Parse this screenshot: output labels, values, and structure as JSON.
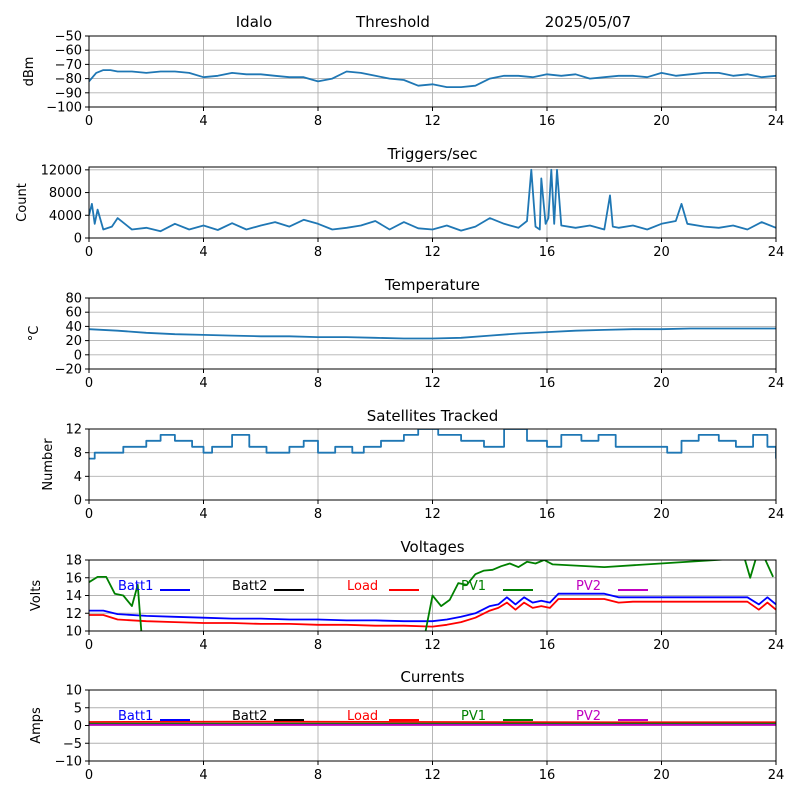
{
  "header": {
    "site": "Idalo",
    "label": "Threshold",
    "date": "2025/05/07"
  },
  "chart_data": [
    {
      "id": "noise",
      "type": "line",
      "title": "",
      "xlabel": "",
      "ylabel": "dBm",
      "xlim": [
        0,
        24
      ],
      "ylim": [
        -100,
        -50
      ],
      "xticks": [
        0,
        4,
        8,
        12,
        16,
        20,
        24
      ],
      "yticks": [
        -100,
        -90,
        -80,
        -70,
        -60,
        -50
      ],
      "grid": true,
      "series": [
        {
          "color": "#1f77b4",
          "x": [
            0,
            0.25,
            0.5,
            0.75,
            1,
            1.5,
            2,
            2.5,
            3,
            3.5,
            4,
            4.5,
            5,
            5.5,
            6,
            6.5,
            7,
            7.5,
            8,
            8.5,
            9,
            9.5,
            10,
            10.5,
            11,
            11.5,
            12,
            12.5,
            13,
            13.5,
            14,
            14.5,
            15,
            15.5,
            16,
            16.5,
            17,
            17.5,
            18,
            18.5,
            19,
            19.5,
            20,
            20.5,
            21,
            21.5,
            22,
            22.5,
            23,
            23.5,
            24
          ],
          "y": [
            -82,
            -76,
            -74,
            -74,
            -75,
            -75,
            -76,
            -75,
            -75,
            -76,
            -79,
            -78,
            -76,
            -77,
            -77,
            -78,
            -79,
            -79,
            -82,
            -80,
            -75,
            -76,
            -78,
            -80,
            -81,
            -85,
            -84,
            -86,
            -86,
            -85,
            -80,
            -78,
            -78,
            -79,
            -77,
            -78,
            -77,
            -80,
            -79,
            -78,
            -78,
            -79,
            -76,
            -78,
            -77,
            -76,
            -76,
            -78,
            -77,
            -79,
            -78
          ]
        }
      ]
    },
    {
      "id": "triggers",
      "type": "line",
      "title": "Triggers/sec",
      "xlabel": "",
      "ylabel": "Count",
      "xlim": [
        0,
        24
      ],
      "ylim": [
        0,
        12500
      ],
      "xticks": [
        0,
        4,
        8,
        12,
        16,
        20,
        24
      ],
      "yticks": [
        0,
        4000,
        8000,
        12000
      ],
      "grid": true,
      "series": [
        {
          "color": "#1f77b4",
          "x": [
            0,
            0.1,
            0.2,
            0.3,
            0.5,
            0.8,
            1,
            1.5,
            2,
            2.5,
            3,
            3.5,
            4,
            4.5,
            5,
            5.5,
            6,
            6.5,
            7,
            7.5,
            8,
            8.5,
            9,
            9.5,
            10,
            10.5,
            11,
            11.5,
            12,
            12.5,
            13,
            13.5,
            14,
            14.5,
            15,
            15.3,
            15.45,
            15.6,
            15.75,
            15.8,
            15.95,
            16.05,
            16.15,
            16.25,
            16.35,
            16.5,
            17,
            17.5,
            18,
            18.2,
            18.3,
            18.5,
            19,
            19.5,
            20,
            20.5,
            20.7,
            20.9,
            21.5,
            22,
            22.5,
            23,
            23.5,
            24
          ],
          "y": [
            4000,
            6000,
            2500,
            5000,
            1500,
            2000,
            3500,
            1500,
            1800,
            1200,
            2500,
            1500,
            2200,
            1400,
            2600,
            1500,
            2200,
            2800,
            2000,
            3200,
            2500,
            1500,
            1800,
            2200,
            3000,
            1500,
            2800,
            1700,
            1500,
            2200,
            1300,
            2000,
            3500,
            2500,
            1800,
            3000,
            12000,
            2000,
            1500,
            10500,
            2500,
            3500,
            12000,
            2500,
            12000,
            2200,
            1800,
            2200,
            1500,
            7500,
            2000,
            1800,
            2200,
            1500,
            2500,
            3000,
            6000,
            2500,
            2000,
            1800,
            2200,
            1500,
            2800,
            1800
          ]
        }
      ]
    },
    {
      "id": "temperature",
      "type": "line",
      "title": "Temperature",
      "xlabel": "",
      "ylabel": "°C",
      "xlim": [
        0,
        24
      ],
      "ylim": [
        -20,
        80
      ],
      "xticks": [
        0,
        4,
        8,
        12,
        16,
        20,
        24
      ],
      "yticks": [
        -20,
        0,
        20,
        40,
        60,
        80
      ],
      "grid": true,
      "series": [
        {
          "color": "#1f77b4",
          "x": [
            0,
            1,
            2,
            3,
            4,
            5,
            6,
            7,
            8,
            9,
            10,
            11,
            12,
            13,
            14,
            15,
            16,
            17,
            18,
            19,
            20,
            21,
            22,
            23,
            24
          ],
          "y": [
            36,
            34,
            31,
            29,
            28,
            27,
            26,
            26,
            25,
            25,
            24,
            23,
            23,
            24,
            27,
            30,
            32,
            34,
            35,
            36,
            36,
            37,
            37,
            37,
            37
          ]
        }
      ]
    },
    {
      "id": "satellites",
      "type": "line",
      "title": "Satellites Tracked",
      "xlabel": "",
      "ylabel": "Number",
      "xlim": [
        0,
        24
      ],
      "ylim": [
        0,
        12
      ],
      "xticks": [
        0,
        4,
        8,
        12,
        16,
        20,
        24
      ],
      "yticks": [
        0,
        4,
        8,
        12
      ],
      "grid": true,
      "step": true,
      "series": [
        {
          "color": "#1f77b4",
          "x": [
            0,
            0.2,
            0.4,
            1.2,
            2.0,
            2.5,
            3.0,
            3.6,
            4.0,
            4.3,
            5.0,
            5.6,
            6.2,
            7.0,
            7.5,
            8.0,
            8.6,
            9.2,
            9.6,
            10.2,
            11.0,
            11.5,
            12.2,
            13.0,
            13.8,
            14.5,
            15.3,
            16.0,
            16.5,
            17.2,
            17.8,
            18.4,
            19.0,
            19.6,
            20.2,
            20.7,
            21.3,
            22.0,
            22.6,
            23.2,
            23.7,
            24
          ],
          "y": [
            7,
            8,
            8,
            9,
            10,
            11,
            10,
            9,
            8,
            9,
            11,
            9,
            8,
            9,
            10,
            8,
            9,
            8,
            9,
            10,
            11,
            12,
            11,
            10,
            9,
            12,
            10,
            9,
            11,
            10,
            11,
            9,
            9,
            9,
            8,
            10,
            11,
            10,
            9,
            11,
            9,
            7
          ]
        }
      ]
    },
    {
      "id": "voltages",
      "type": "line",
      "title": "Voltages",
      "xlabel": "",
      "ylabel": "Volts",
      "xlim": [
        0,
        24
      ],
      "ylim": [
        10,
        18
      ],
      "xticks": [
        0,
        4,
        8,
        12,
        16,
        20,
        24
      ],
      "yticks": [
        10,
        12,
        14,
        16,
        18
      ],
      "grid": true,
      "legend": "top",
      "series": [
        {
          "name": "Batt1",
          "color": "#0000ff",
          "x": [
            0,
            0.5,
            1,
            2,
            3,
            4,
            5,
            6,
            7,
            8,
            9,
            10,
            11,
            12,
            12.5,
            13,
            13.5,
            14,
            14.3,
            14.6,
            14.9,
            15.2,
            15.5,
            15.8,
            16.1,
            16.4,
            17,
            17.5,
            18,
            18.5,
            19,
            20,
            21,
            22,
            23,
            23.4,
            23.7,
            24
          ],
          "y": [
            12.3,
            12.3,
            11.9,
            11.7,
            11.6,
            11.5,
            11.4,
            11.4,
            11.3,
            11.3,
            11.2,
            11.2,
            11.1,
            11.1,
            11.3,
            11.6,
            12.0,
            12.8,
            13.0,
            13.8,
            13.0,
            13.8,
            13.2,
            13.4,
            13.2,
            14.2,
            14.2,
            14.2,
            14.2,
            13.8,
            13.8,
            13.8,
            13.8,
            13.8,
            13.8,
            13.0,
            13.8,
            13.0
          ]
        },
        {
          "name": "Batt2",
          "color": "#000000",
          "x": [],
          "y": []
        },
        {
          "name": "Load",
          "color": "#ff0000",
          "x": [
            0,
            0.5,
            1,
            2,
            3,
            4,
            5,
            6,
            7,
            8,
            9,
            10,
            11,
            12,
            12.5,
            13,
            13.5,
            14,
            14.3,
            14.6,
            14.9,
            15.2,
            15.5,
            15.8,
            16.1,
            16.4,
            17,
            17.5,
            18,
            18.5,
            19,
            20,
            21,
            22,
            23,
            23.4,
            23.7,
            24
          ],
          "y": [
            11.8,
            11.8,
            11.3,
            11.1,
            11.0,
            10.9,
            10.9,
            10.8,
            10.8,
            10.7,
            10.7,
            10.6,
            10.6,
            10.5,
            10.7,
            11.0,
            11.5,
            12.3,
            12.6,
            13.2,
            12.4,
            13.2,
            12.6,
            12.8,
            12.6,
            13.6,
            13.6,
            13.6,
            13.6,
            13.2,
            13.3,
            13.3,
            13.3,
            13.3,
            13.3,
            12.4,
            13.2,
            12.4
          ]
        },
        {
          "name": "PV1",
          "color": "#008000",
          "x": [
            0,
            0.3,
            0.6,
            0.9,
            1.2,
            1.5,
            1.7,
            1.85,
            11.7,
            12.0,
            12.3,
            12.6,
            12.9,
            13.2,
            13.5,
            13.8,
            14.1,
            14.4,
            14.7,
            15.0,
            15.3,
            15.6,
            15.9,
            16.2,
            18.0,
            22.9,
            23.1,
            23.3,
            23.6,
            23.9
          ],
          "y": [
            15.5,
            16.1,
            16.1,
            14.2,
            14.0,
            12.8,
            15.2,
            9.0,
            9.0,
            14.0,
            12.8,
            13.5,
            15.4,
            15.2,
            16.4,
            16.8,
            16.9,
            17.3,
            17.6,
            17.2,
            17.8,
            17.6,
            18.0,
            17.5,
            17.2,
            18.2,
            16.0,
            18.2,
            18.2,
            16.1
          ]
        },
        {
          "name": "PV2",
          "color": "#c000c0",
          "x": [],
          "y": []
        }
      ]
    },
    {
      "id": "currents",
      "type": "line",
      "title": "Currents",
      "xlabel": "",
      "ylabel": "Amps",
      "xlim": [
        0,
        24
      ],
      "ylim": [
        -10,
        10
      ],
      "xticks": [
        0,
        4,
        8,
        12,
        16,
        20,
        24
      ],
      "yticks": [
        -10,
        -5,
        0,
        5,
        10
      ],
      "grid": true,
      "legend": "top",
      "series": [
        {
          "name": "Batt1",
          "color": "#0000ff",
          "x": [
            0,
            24
          ],
          "y": [
            0.3,
            0.3
          ]
        },
        {
          "name": "Batt2",
          "color": "#000000",
          "x": [],
          "y": []
        },
        {
          "name": "Load",
          "color": "#ff0000",
          "x": [
            0,
            6,
            12,
            18,
            24
          ],
          "y": [
            1.0,
            1.1,
            1.0,
            0.9,
            0.9
          ]
        },
        {
          "name": "PV1",
          "color": "#008000",
          "x": [
            0,
            12,
            24
          ],
          "y": [
            0.5,
            0.5,
            0.5
          ]
        },
        {
          "name": "PV2",
          "color": "#c000c0",
          "x": [
            0,
            24
          ],
          "y": [
            0.2,
            0.2
          ]
        }
      ]
    }
  ]
}
